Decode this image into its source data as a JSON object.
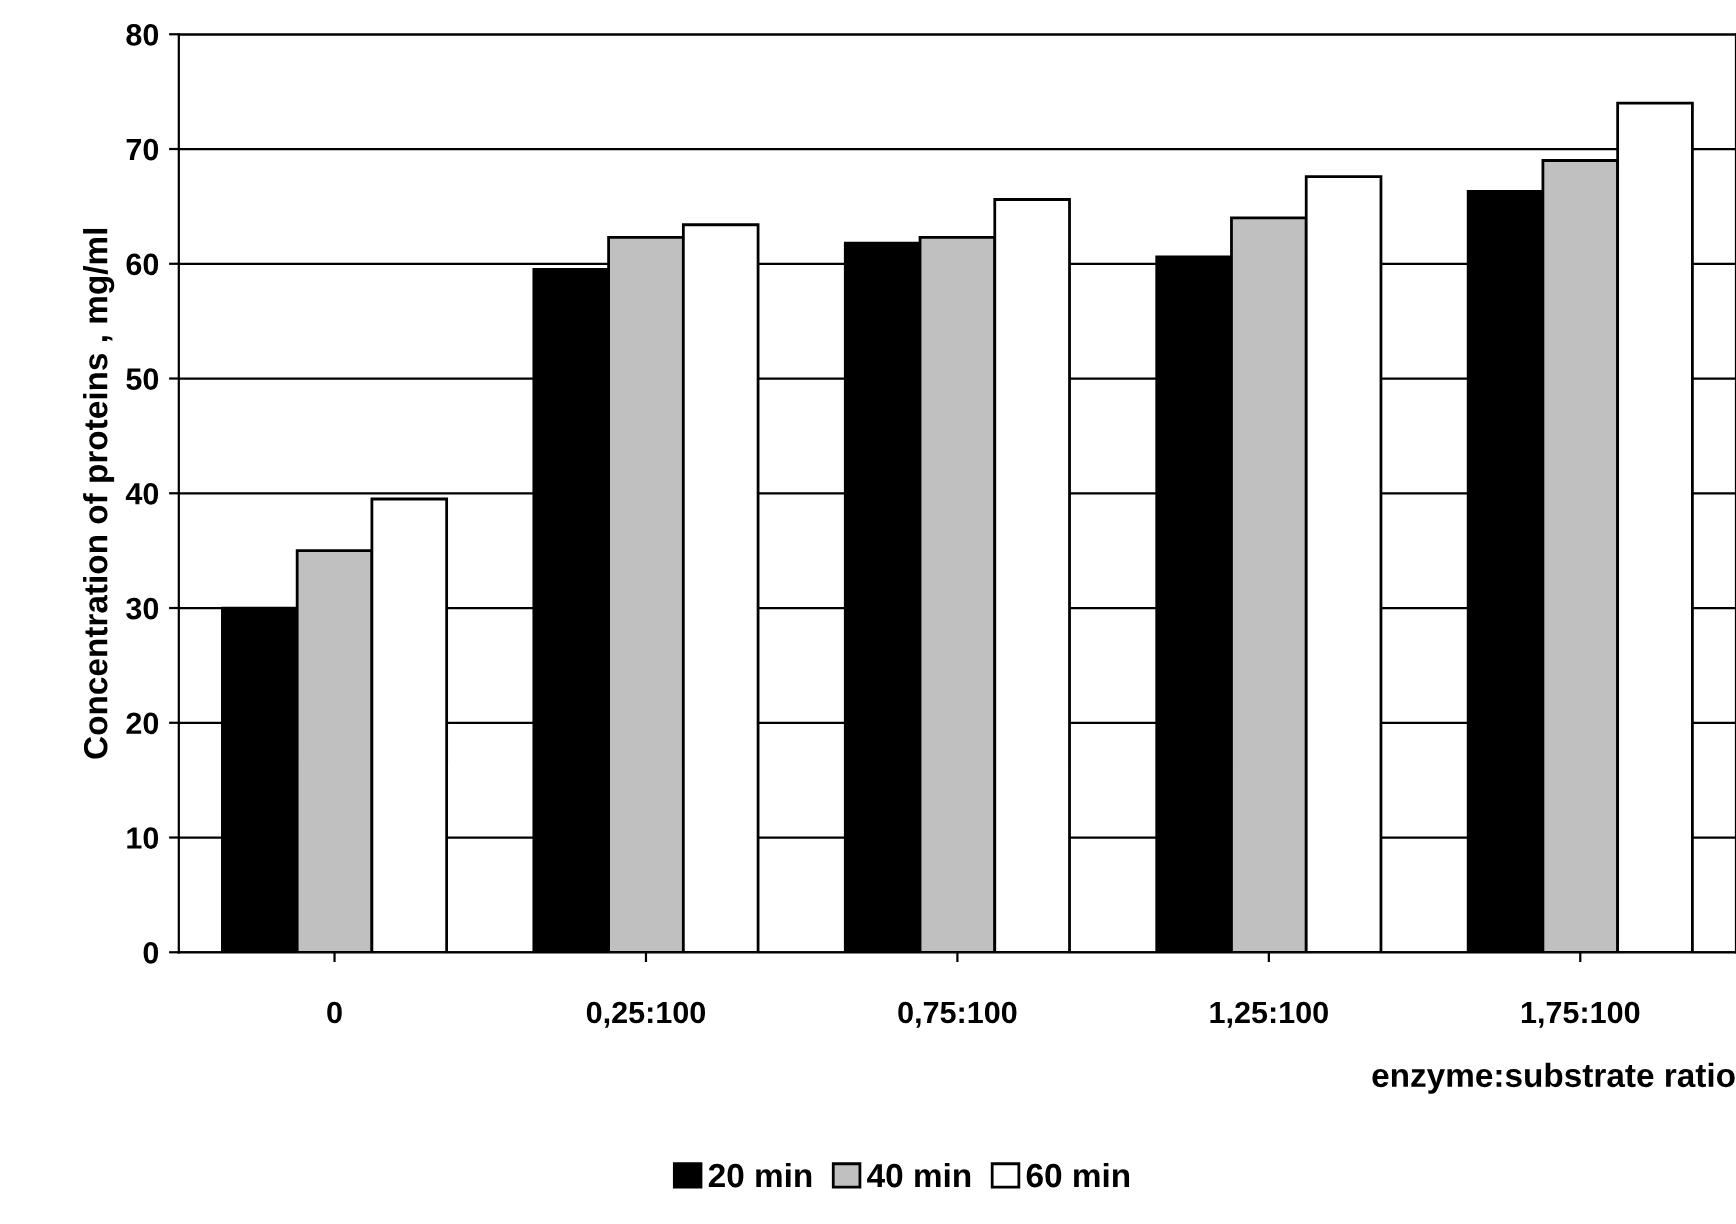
{
  "chart_data": {
    "type": "bar",
    "xlabel": "enzyme:substrate ratio",
    "ylabel": "Concentration of proteins , mg/ml",
    "categories": [
      "0",
      "0,25:100",
      "0,75:100",
      "1,25:100",
      "1,75:100"
    ],
    "series": [
      {
        "name": "20 min",
        "color": "#000000",
        "values": [
          30,
          59.5,
          61.8,
          60.6,
          66.3
        ]
      },
      {
        "name": "40 min",
        "color": "#c0c0c0",
        "values": [
          35,
          62.3,
          62.3,
          64,
          69
        ]
      },
      {
        "name": "60 min",
        "color": "#ffffff",
        "values": [
          39.5,
          63.4,
          65.6,
          67.6,
          74
        ]
      }
    ],
    "ylim": [
      0,
      80
    ],
    "yticks": [
      0,
      10,
      20,
      30,
      40,
      50,
      60,
      70,
      80
    ],
    "grid": "y",
    "legend": "bottom"
  }
}
